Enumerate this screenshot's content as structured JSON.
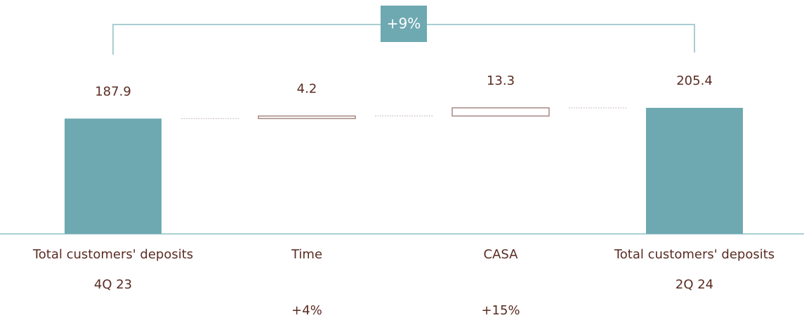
{
  "chart_data": {
    "type": "waterfall",
    "categories": [
      "Total customers' deposits",
      "Time",
      "CASA",
      "Total customers' deposits"
    ],
    "category_sublabels": [
      "4Q 23",
      null,
      null,
      "2Q 24"
    ],
    "change_labels": [
      null,
      "+4%",
      "+15%",
      null
    ],
    "values": [
      187.9,
      4.2,
      13.3,
      205.4
    ],
    "bar_types": [
      "total",
      "increase",
      "increase",
      "total"
    ],
    "total_color": "#6ea9b1",
    "increase_color": "#a58983",
    "annotation": "+9%"
  }
}
